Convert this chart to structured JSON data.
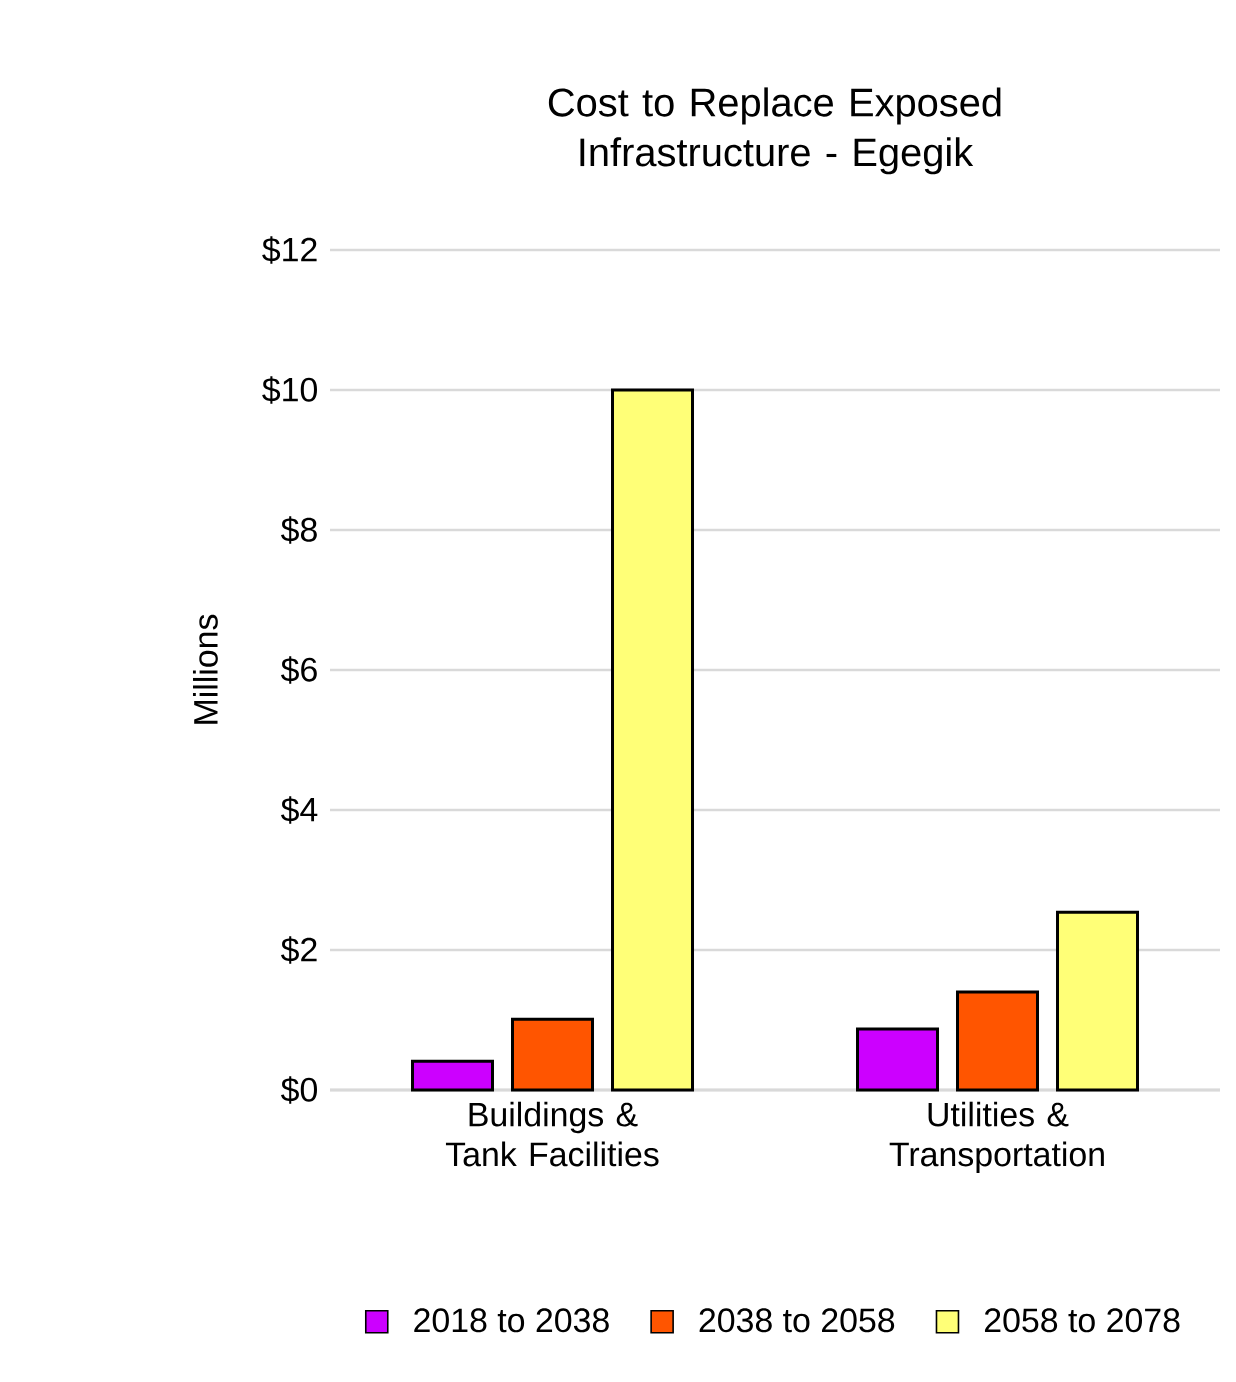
{
  "chart_data": {
    "type": "bar",
    "title": "Cost to Replace Exposed Infrastructure - Egegik",
    "ylabel": "Millions",
    "categories": [
      "Buildings & Tank Facilities",
      "Utilities & Transportation"
    ],
    "series": [
      {
        "name": "2018 to 2038",
        "color": "#cc00ff",
        "values": [
          0.41,
          0.87
        ]
      },
      {
        "name": "2038 to 2058",
        "color": "#ff5500",
        "values": [
          1.01,
          1.4
        ]
      },
      {
        "name": "2058 to 2078",
        "color": "#ffff77",
        "values": [
          10,
          2.54
        ]
      }
    ],
    "ylim": [
      0,
      12
    ],
    "yticks": [
      {
        "value": 0,
        "label": "$0"
      },
      {
        "value": 2,
        "label": "$2"
      },
      {
        "value": 4,
        "label": "$4"
      },
      {
        "value": 6,
        "label": "$6"
      },
      {
        "value": 8,
        "label": "$8"
      },
      {
        "value": 10,
        "label": "$10"
      },
      {
        "value": 12,
        "label": "$12"
      }
    ],
    "grid": "y",
    "legend": "bottom"
  }
}
